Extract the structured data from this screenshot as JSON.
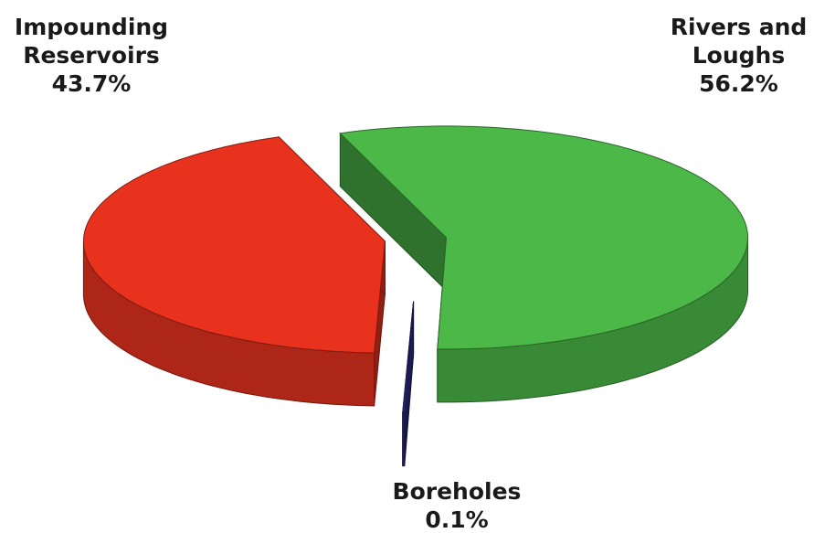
{
  "chart_data": {
    "type": "pie3d",
    "categories": [
      "Rivers and Loughs",
      "Boreholes",
      "Impounding Reservoirs"
    ],
    "values": [
      56.2,
      0.1,
      43.7
    ],
    "value_labels": [
      "56.2%",
      "0.1%",
      "43.7%"
    ],
    "colors": [
      "#4cb848",
      "#2b2b82",
      "#e8321e"
    ]
  }
}
